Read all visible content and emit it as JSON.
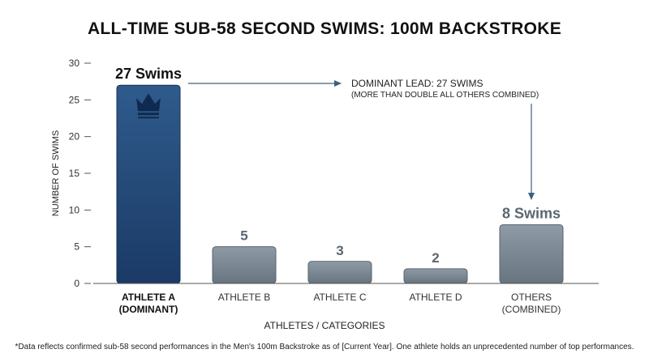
{
  "chart_data": {
    "type": "bar",
    "title": "ALL-TIME SUB-58 SECOND SWIMS: 100M BACKSTROKE",
    "xlabel": "ATHLETES / CATEGORIES",
    "ylabel": "NUMBER OF SWIMS",
    "ylim": [
      0,
      30
    ],
    "yticks": [
      0,
      5,
      10,
      15,
      20,
      25,
      30
    ],
    "grid": false,
    "categories": [
      [
        "ATHLETE A",
        "(DOMINANT)"
      ],
      [
        "ATHLETE B"
      ],
      [
        "ATHLETE C"
      ],
      [
        "ATHLETE D"
      ],
      [
        "OTHERS",
        "(COMBINED)"
      ]
    ],
    "values": [
      27,
      5,
      3,
      2,
      8
    ],
    "value_labels": [
      "27 Swims",
      "5",
      "3",
      "2",
      "8 Swims"
    ],
    "highlight_index": 0,
    "colors": {
      "highlight_top": "#2f5b8c",
      "highlight_bottom": "#1b3a66",
      "bar_top": "#8e9aa6",
      "bar_bottom": "#68747f",
      "value_label": "#5b6670",
      "highlight_label": "#111111",
      "arrow": "#3e5f80",
      "axis": "#555555"
    },
    "annotation": {
      "line1": "DOMINANT LEAD: 27 SWIMS",
      "line2": "(MORE THAN DOUBLE ALL OTHERS COMBINED)"
    },
    "icon": "crown-icon"
  },
  "footnote": "*Data reflects confirmed sub-58 second performances in the Men's 100m Backstroke as of [Current Year]. One athlete holds an unprecedented number of top performances."
}
